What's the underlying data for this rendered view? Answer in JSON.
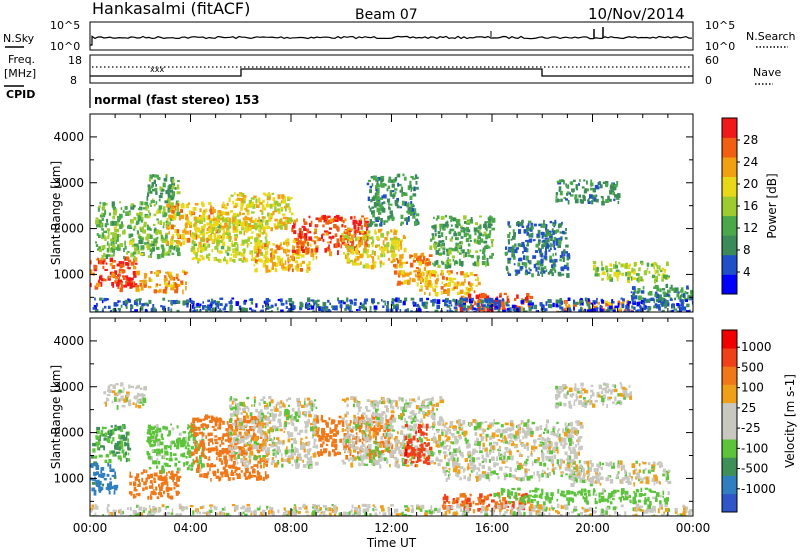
{
  "header": {
    "station": "Hankasalmi (fitACF)",
    "beam": "Beam 07",
    "date": "10/Nov/2014"
  },
  "status_panel": {
    "nsky_label": "N.Sky",
    "nsearch_label": "N.Search",
    "left_ticks": [
      "10^5",
      "10^0"
    ],
    "right_ticks": [
      "10^5",
      "10^0"
    ],
    "freq_label": "Freq.",
    "freq_unit": "[MHz]",
    "freq_ticks": [
      "18",
      "8"
    ],
    "nave_ticks": [
      "60",
      "0"
    ],
    "nave_label": "Nave",
    "cpid_label": "CPID",
    "cpid_text": "normal (fast stereo) 153",
    "noise_marks": "xxx"
  },
  "colors": {
    "power_scale": [
      "#0000ff",
      "#2050c8",
      "#3a8a5a",
      "#4aa84a",
      "#9ccc30",
      "#e8d818",
      "#f0a010",
      "#f06010",
      "#f01818"
    ],
    "velocity_scale": [
      "#2f55c8",
      "#2f7fc0",
      "#3f8f58",
      "#5cc43a",
      "#c8c8c0",
      "#c8c8c0",
      "#f0a018",
      "#f07818",
      "#f04018",
      "#f00000"
    ],
    "ground_scatter": "#c8c8c0"
  },
  "chart_data": [
    {
      "type": "heatmap",
      "panel": "power",
      "xlabel": "",
      "ylabel": "Slant Range [km]",
      "xlim": [
        0,
        24
      ],
      "ylim": [
        180,
        4500
      ],
      "yticks": [
        1000,
        2000,
        3000,
        4000
      ],
      "grid": false,
      "colorbar": {
        "label": "Power [dB]",
        "min": 0,
        "max": 32,
        "tick_labels": [
          "4",
          "8",
          "12",
          "16",
          "20",
          "24",
          "28"
        ]
      },
      "regions": [
        {
          "x": [
            0.0,
            1.8
          ],
          "y": [
            700,
            1400
          ],
          "value": 28
        },
        {
          "x": [
            0.2,
            3.5
          ],
          "y": [
            1400,
            2600
          ],
          "value": 14
        },
        {
          "x": [
            1.8,
            3.8
          ],
          "y": [
            650,
            1100
          ],
          "value": 24
        },
        {
          "x": [
            2.2,
            3.5
          ],
          "y": [
            2600,
            3200
          ],
          "value": 12
        },
        {
          "x": [
            3.0,
            5.5
          ],
          "y": [
            1700,
            2600
          ],
          "value": 22
        },
        {
          "x": [
            4.0,
            7.0
          ],
          "y": [
            1300,
            2300
          ],
          "value": 18
        },
        {
          "x": [
            5.5,
            8.0
          ],
          "y": [
            2000,
            2800
          ],
          "value": 20
        },
        {
          "x": [
            6.5,
            9.0
          ],
          "y": [
            1100,
            1800
          ],
          "value": 22
        },
        {
          "x": [
            8.0,
            11.0
          ],
          "y": [
            1500,
            2300
          ],
          "value": 28
        },
        {
          "x": [
            10.0,
            12.5
          ],
          "y": [
            1200,
            2000
          ],
          "value": 20
        },
        {
          "x": [
            11.0,
            13.0
          ],
          "y": [
            2100,
            3200
          ],
          "value": 10
        },
        {
          "x": [
            12.0,
            13.5
          ],
          "y": [
            800,
            1500
          ],
          "value": 24
        },
        {
          "x": [
            13.0,
            15.5
          ],
          "y": [
            600,
            1100
          ],
          "value": 22
        },
        {
          "x": [
            13.5,
            16.0
          ],
          "y": [
            1200,
            2300
          ],
          "value": 12
        },
        {
          "x": [
            14.5,
            17.5
          ],
          "y": [
            250,
            600
          ],
          "value": 28
        },
        {
          "x": [
            16.5,
            19.0
          ],
          "y": [
            1000,
            2200
          ],
          "value": 8
        },
        {
          "x": [
            18.5,
            21.5
          ],
          "y": [
            200,
            450
          ],
          "value": 24
        },
        {
          "x": [
            18.5,
            21.0
          ],
          "y": [
            2600,
            3100
          ],
          "value": 10
        },
        {
          "x": [
            20.0,
            23.0
          ],
          "y": [
            900,
            1300
          ],
          "value": 16
        },
        {
          "x": [
            21.5,
            24.0
          ],
          "y": [
            400,
            800
          ],
          "value": 10
        },
        {
          "x": [
            0.0,
            24.0
          ],
          "y": [
            180,
            500
          ],
          "value": 6
        }
      ]
    },
    {
      "type": "heatmap",
      "panel": "velocity",
      "xlabel": "Time UT",
      "ylabel": "Slant Range [km]",
      "xlim": [
        0,
        24
      ],
      "ylim": [
        180,
        4500
      ],
      "yticks": [
        1000,
        2000,
        3000,
        4000
      ],
      "xticks": [
        "00:00",
        "04:00",
        "08:00",
        "12:00",
        "16:00",
        "20:00",
        "00:00"
      ],
      "grid": false,
      "colorbar": {
        "label": "Velocity [m s-1]",
        "min": -1000,
        "max": 1000,
        "tick_labels": [
          "1000",
          "500",
          "100",
          "25",
          "-25",
          "-100",
          "-500",
          "-1000"
        ]
      },
      "regions": [
        {
          "x": [
            0.0,
            1.0
          ],
          "y": [
            700,
            1400
          ],
          "value": 400
        },
        {
          "x": [
            0.0,
            1.5
          ],
          "y": [
            1400,
            2200
          ],
          "value": 100
        },
        {
          "x": [
            0.5,
            2.2
          ],
          "y": [
            2600,
            3100
          ],
          "value": 0
        },
        {
          "x": [
            1.5,
            3.5
          ],
          "y": [
            600,
            1200
          ],
          "value": -150
        },
        {
          "x": [
            2.2,
            4.5
          ],
          "y": [
            1200,
            2200
          ],
          "value": 60
        },
        {
          "x": [
            4.0,
            7.0
          ],
          "y": [
            1000,
            2400
          ],
          "value": -200
        },
        {
          "x": [
            5.5,
            9.0
          ],
          "y": [
            1300,
            2800
          ],
          "value": 0
        },
        {
          "x": [
            9.0,
            12.0
          ],
          "y": [
            1500,
            2400
          ],
          "value": -150
        },
        {
          "x": [
            10.0,
            14.0
          ],
          "y": [
            1300,
            2800
          ],
          "value": 0
        },
        {
          "x": [
            12.5,
            13.5
          ],
          "y": [
            1300,
            2200
          ],
          "value": -600
        },
        {
          "x": [
            14.0,
            17.5
          ],
          "y": [
            350,
            700
          ],
          "value": -300
        },
        {
          "x": [
            14.0,
            19.5
          ],
          "y": [
            1000,
            2300
          ],
          "value": 0
        },
        {
          "x": [
            18.5,
            21.5
          ],
          "y": [
            2600,
            3100
          ],
          "value": 0
        },
        {
          "x": [
            19.0,
            23.0
          ],
          "y": [
            900,
            1400
          ],
          "value": 0
        },
        {
          "x": [
            16.0,
            23.0
          ],
          "y": [
            500,
            800
          ],
          "value": 60
        },
        {
          "x": [
            0.0,
            24.0
          ],
          "y": [
            180,
            450
          ],
          "value": 0
        }
      ]
    }
  ]
}
